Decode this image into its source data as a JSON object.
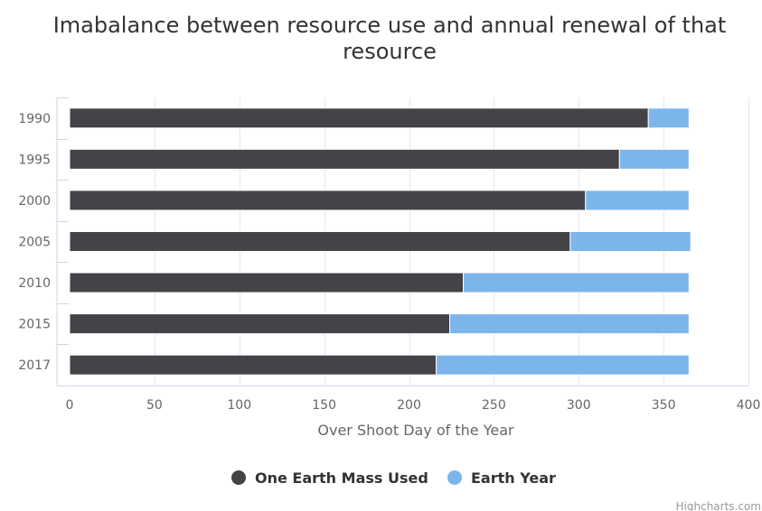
{
  "chart_data": {
    "type": "bar",
    "orientation": "horizontal",
    "stacked": true,
    "title": "Imabalance between resource use and annual renewal of that resource",
    "title_lines": [
      "Imabalance between resource use and annual renewal of that",
      "resource"
    ],
    "categories": [
      "1990",
      "1995",
      "2000",
      "2005",
      "2010",
      "2015",
      "2017"
    ],
    "series": [
      {
        "name": "One Earth Mass Used",
        "color": "#434348",
        "values": [
          341,
          324,
          304,
          295,
          232,
          224,
          216
        ]
      },
      {
        "name": "Earth Year",
        "color": "#7cb5ec",
        "values": [
          24,
          41,
          61,
          71,
          133,
          141,
          149
        ]
      }
    ],
    "xlabel": "Over Shoot Day of the Year",
    "xlim": [
      0,
      400
    ],
    "xticks": [
      0,
      50,
      100,
      150,
      200,
      250,
      300,
      350,
      400
    ],
    "grid": true,
    "legend_position": "bottom"
  },
  "credits": "Highcharts.com"
}
